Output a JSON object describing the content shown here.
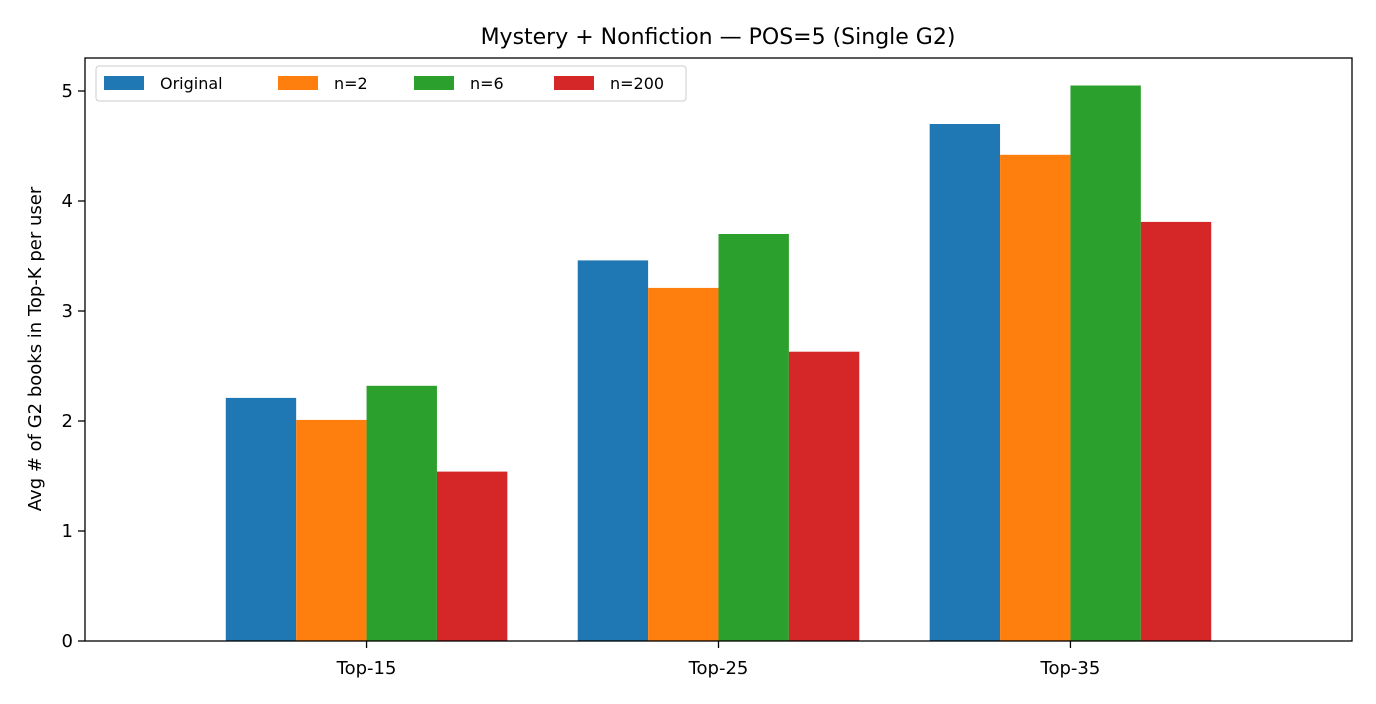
{
  "chart_data": {
    "type": "bar",
    "title": "Mystery + Nonfiction — POS=5 (Single G2)",
    "xlabel": "",
    "ylabel": "Avg # of G2 books in Top-K per user",
    "categories": [
      "Top-15",
      "Top-25",
      "Top-35"
    ],
    "series": [
      {
        "name": "Original",
        "color": "#1f77b4",
        "values": [
          2.21,
          3.46,
          4.7
        ]
      },
      {
        "name": "n=2",
        "color": "#ff7f0e",
        "values": [
          2.01,
          3.21,
          4.42
        ]
      },
      {
        "name": "n=6",
        "color": "#2ca02c",
        "values": [
          2.32,
          3.7,
          5.05
        ]
      },
      {
        "name": "n=200",
        "color": "#d62728",
        "values": [
          1.54,
          2.63,
          3.81
        ]
      }
    ],
    "ylim": [
      0,
      5.3
    ],
    "yticks": [
      "0",
      "1",
      "2",
      "3",
      "4",
      "5"
    ],
    "grid": false,
    "legend": {
      "placement": "upper-left",
      "columns": 4
    }
  }
}
